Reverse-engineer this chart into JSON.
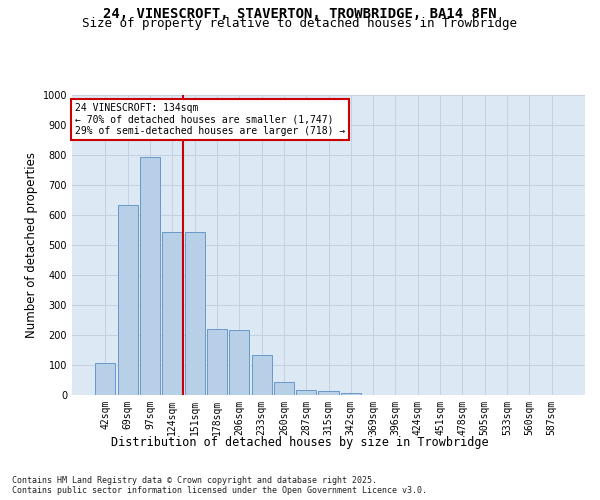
{
  "title": "24, VINESCROFT, STAVERTON, TROWBRIDGE, BA14 8FN",
  "subtitle": "Size of property relative to detached houses in Trowbridge",
  "xlabel": "Distribution of detached houses by size in Trowbridge",
  "ylabel": "Number of detached properties",
  "categories": [
    "42sqm",
    "69sqm",
    "97sqm",
    "124sqm",
    "151sqm",
    "178sqm",
    "206sqm",
    "233sqm",
    "260sqm",
    "287sqm",
    "315sqm",
    "342sqm",
    "369sqm",
    "396sqm",
    "424sqm",
    "451sqm",
    "478sqm",
    "505sqm",
    "533sqm",
    "560sqm",
    "587sqm"
  ],
  "values": [
    107,
    632,
    795,
    543,
    543,
    220,
    218,
    135,
    42,
    16,
    15,
    8,
    0,
    0,
    0,
    0,
    0,
    0,
    0,
    0,
    0
  ],
  "bar_color": "#b8cfe8",
  "bar_edgecolor": "#6898c8",
  "vline_color": "#cc0000",
  "annotation_text": "24 VINESCROFT: 134sqm\n← 70% of detached houses are smaller (1,747)\n29% of semi-detached houses are larger (718) →",
  "annotation_box_color": "#cc0000",
  "bg_color": "#dde8f5",
  "grid_color": "#c5d0e0",
  "ylim": [
    0,
    1000
  ],
  "yticks": [
    0,
    100,
    200,
    300,
    400,
    500,
    600,
    700,
    800,
    900,
    1000
  ],
  "footer": "Contains HM Land Registry data © Crown copyright and database right 2025.\nContains public sector information licensed under the Open Government Licence v3.0.",
  "title_fontsize": 10,
  "subtitle_fontsize": 9,
  "axis_label_fontsize": 8.5,
  "tick_fontsize": 7,
  "annotation_fontsize": 7,
  "footer_fontsize": 6
}
